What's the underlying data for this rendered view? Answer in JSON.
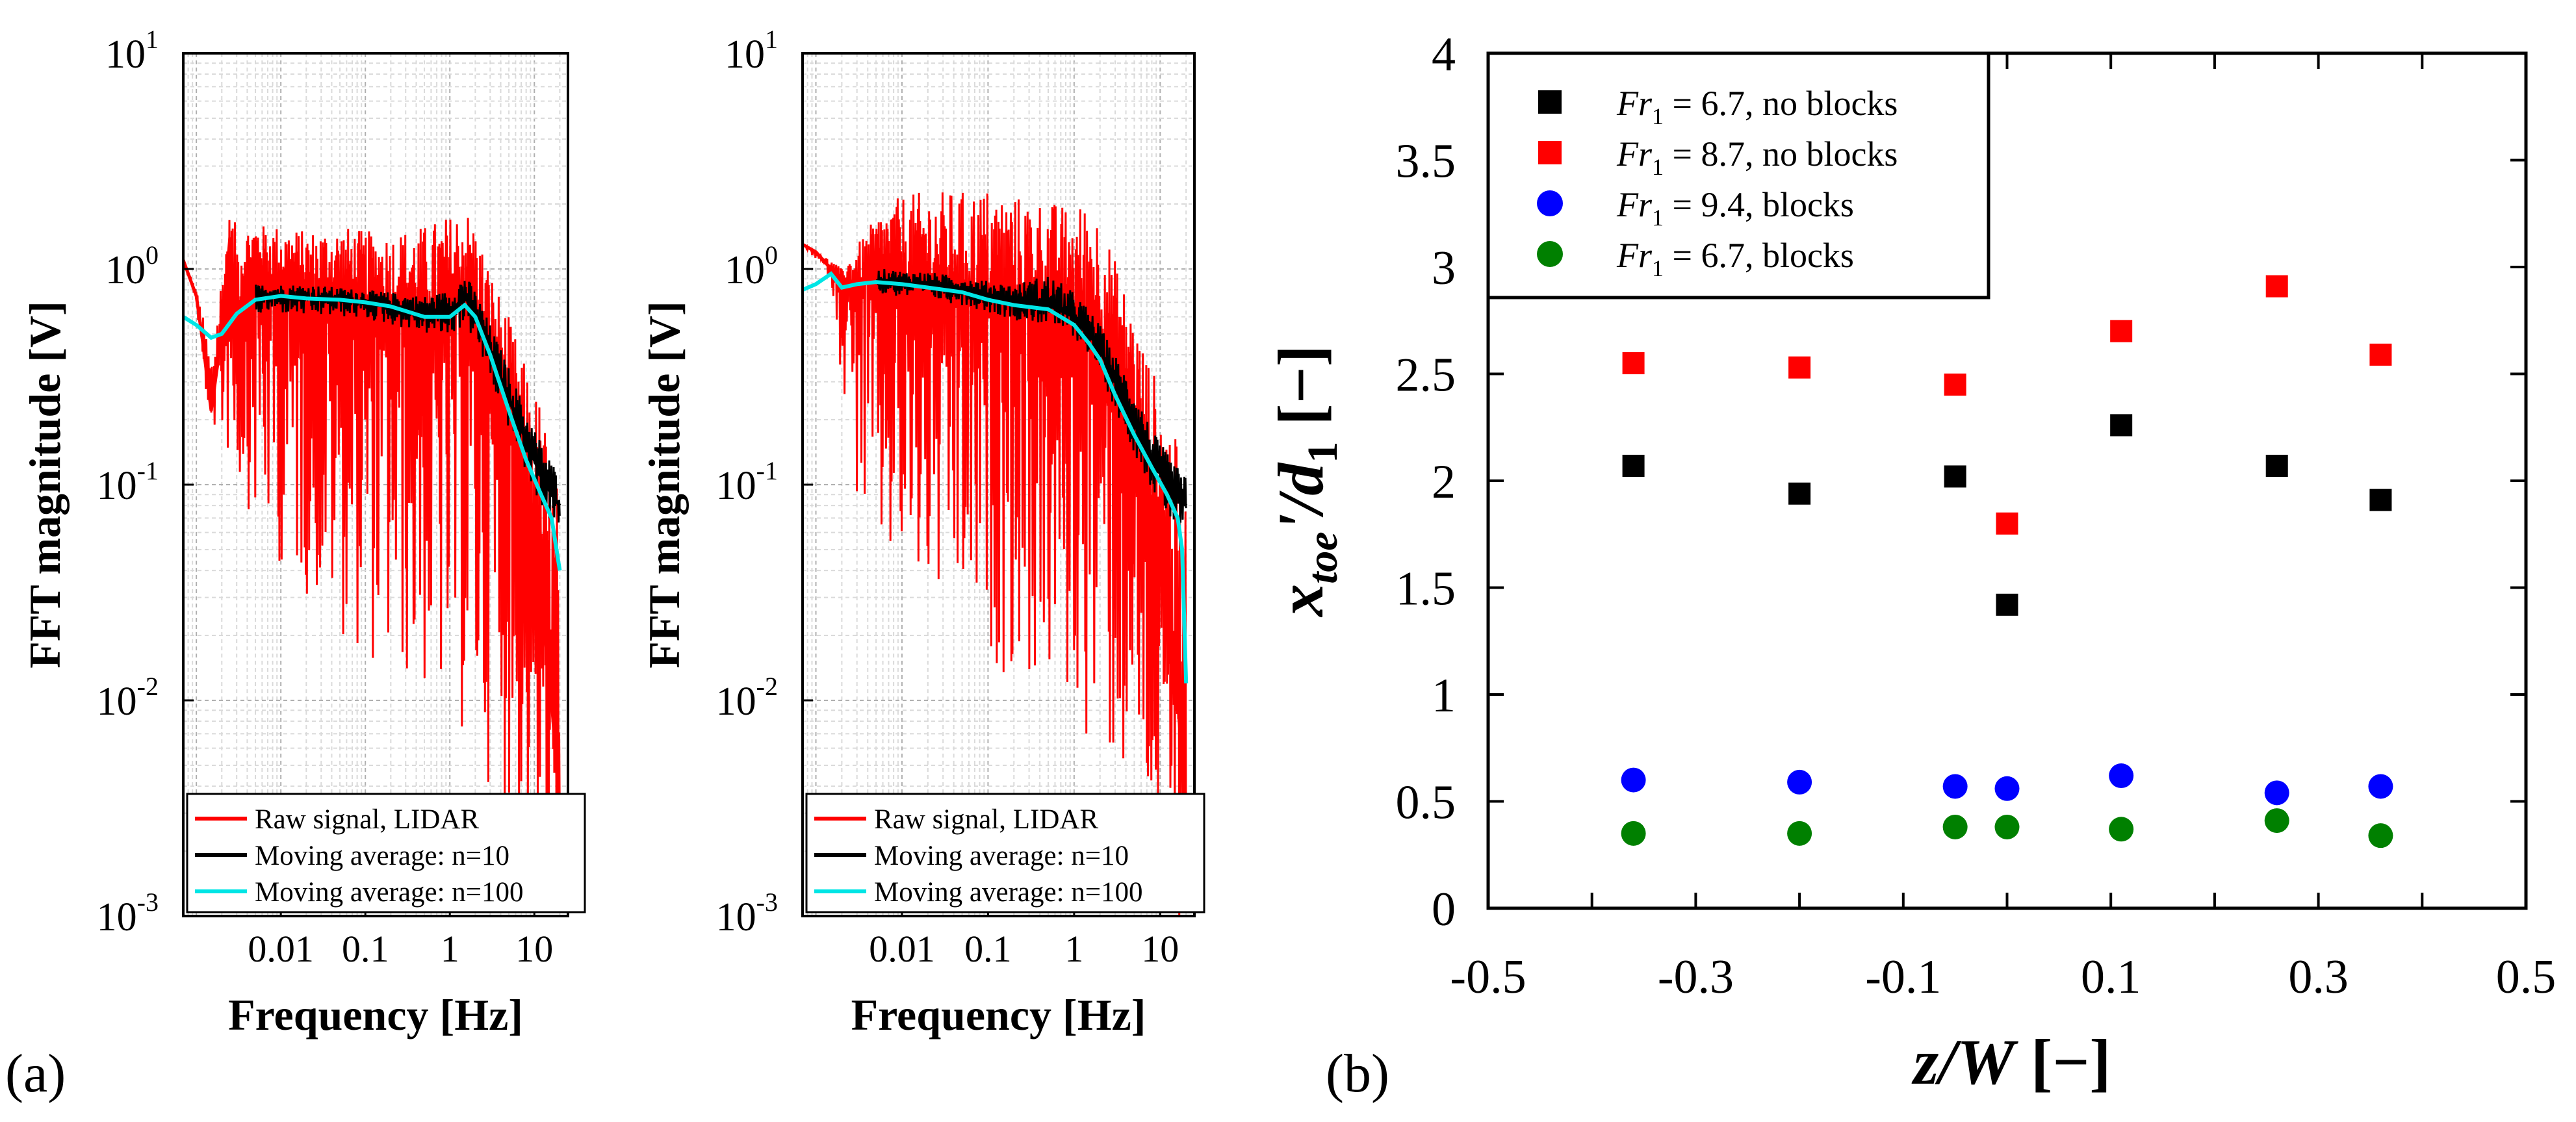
{
  "panel_labels": {
    "a": "(a)",
    "b": "(b)"
  },
  "chart_data": [
    {
      "type": "line",
      "scale": "loglog",
      "xlabel": "Frequency [Hz]",
      "ylabel": "FFT magnitude [V]",
      "xlim": [
        0.0007,
        25
      ],
      "ylim": [
        0.001,
        10
      ],
      "xticks": [
        0.01,
        0.1,
        1,
        10
      ],
      "xtick_labels": [
        "0.01",
        "0.1",
        "1",
        "10"
      ],
      "yticks": [
        0.001,
        0.01,
        0.1,
        1,
        10
      ],
      "ytick_labels": [
        {
          "b": "10",
          "e": "-3"
        },
        {
          "b": "10",
          "e": "-2"
        },
        {
          "b": "10",
          "e": "-1"
        },
        {
          "b": "10",
          "e": "0"
        },
        {
          "b": "10",
          "e": "1"
        }
      ],
      "grid": true,
      "legend_position": "bottom",
      "series": [
        {
          "name": "Raw signal, LIDAR",
          "color": "#ff0000",
          "x": [
            0.0007,
            0.001,
            0.0012,
            0.0015,
            0.002,
            0.0025,
            0.003,
            0.004,
            0.005,
            0.007,
            0.01,
            0.02,
            0.05,
            0.1,
            0.2,
            0.5,
            1,
            1.5,
            2,
            3,
            5,
            8,
            12,
            16,
            20
          ],
          "y": [
            1.1,
            0.75,
            0.45,
            0.22,
            0.5,
            1.4,
            0.6,
            0.9,
            1.1,
            0.9,
            0.85,
            0.8,
            0.75,
            0.7,
            0.65,
            0.6,
            0.6,
            0.8,
            0.7,
            0.4,
            0.2,
            0.08,
            0.03,
            0.01,
            0.003
          ],
          "envelope_upper": [
            1.1,
            0.8,
            0.6,
            0.4,
            1.0,
            1.8,
            1.6,
            1.6,
            1.6,
            1.6,
            1.6,
            1.5,
            1.6,
            1.5,
            1.5,
            1.6,
            1.8,
            2.0,
            1.6,
            1.0,
            0.6,
            0.35,
            0.25,
            0.15,
            0.1
          ],
          "envelope_lower": [
            1.1,
            0.7,
            0.3,
            0.2,
            0.15,
            0.12,
            0.1,
            0.08,
            0.06,
            0.05,
            0.04,
            0.03,
            0.02,
            0.015,
            0.012,
            0.01,
            0.008,
            0.006,
            0.005,
            0.004,
            0.003,
            0.002,
            0.0015,
            0.001,
            0.001
          ]
        },
        {
          "name": "Moving average: n=10",
          "color": "#000000",
          "x": [
            0.005,
            0.007,
            0.01,
            0.02,
            0.05,
            0.1,
            0.2,
            0.5,
            1,
            1.5,
            2,
            3,
            5,
            8,
            12,
            16,
            20
          ],
          "y": [
            0.72,
            0.75,
            0.74,
            0.73,
            0.72,
            0.7,
            0.67,
            0.62,
            0.62,
            0.75,
            0.62,
            0.42,
            0.25,
            0.16,
            0.11,
            0.09,
            0.08
          ],
          "envelope_upper": [
            0.85,
            0.85,
            0.85,
            0.85,
            0.82,
            0.8,
            0.78,
            0.75,
            0.8,
            0.95,
            0.8,
            0.55,
            0.35,
            0.22,
            0.16,
            0.13,
            0.11
          ],
          "envelope_lower": [
            0.6,
            0.62,
            0.62,
            0.6,
            0.6,
            0.58,
            0.55,
            0.5,
            0.48,
            0.55,
            0.45,
            0.3,
            0.18,
            0.11,
            0.08,
            0.065,
            0.06
          ]
        },
        {
          "name": "Moving average: n=100",
          "color": "#00e5e5",
          "x": [
            0.0007,
            0.001,
            0.0015,
            0.002,
            0.003,
            0.005,
            0.01,
            0.02,
            0.05,
            0.1,
            0.2,
            0.5,
            1,
            1.5,
            2,
            3,
            5,
            8,
            12,
            16,
            20
          ],
          "y": [
            0.6,
            0.55,
            0.48,
            0.5,
            0.62,
            0.72,
            0.75,
            0.73,
            0.72,
            0.7,
            0.67,
            0.6,
            0.6,
            0.68,
            0.6,
            0.4,
            0.22,
            0.13,
            0.09,
            0.07,
            0.04
          ]
        }
      ]
    },
    {
      "type": "line",
      "scale": "loglog",
      "xlabel": "Frequency [Hz]",
      "ylabel": "FFT magnitude [V]",
      "xlim": [
        0.0007,
        25
      ],
      "ylim": [
        0.001,
        10
      ],
      "xticks": [
        0.01,
        0.1,
        1,
        10
      ],
      "xtick_labels": [
        "0.01",
        "0.1",
        "1",
        "10"
      ],
      "yticks": [
        0.001,
        0.01,
        0.1,
        1,
        10
      ],
      "ytick_labels": [
        {
          "b": "10",
          "e": "-3"
        },
        {
          "b": "10",
          "e": "-2"
        },
        {
          "b": "10",
          "e": "-1"
        },
        {
          "b": "10",
          "e": "0"
        },
        {
          "b": "10",
          "e": "1"
        }
      ],
      "grid": true,
      "legend_position": "bottom",
      "series": [
        {
          "name": "Raw signal, LIDAR",
          "color": "#ff0000",
          "x": [
            0.0007,
            0.001,
            0.0015,
            0.002,
            0.003,
            0.004,
            0.005,
            0.007,
            0.01,
            0.02,
            0.05,
            0.1,
            0.2,
            0.5,
            1,
            1.5,
            2,
            3,
            5,
            8,
            12,
            16,
            20
          ],
          "y": [
            1.3,
            1.2,
            1.0,
            0.9,
            0.85,
            0.9,
            0.85,
            0.9,
            0.85,
            0.8,
            0.75,
            0.7,
            0.7,
            0.65,
            0.6,
            0.55,
            0.5,
            0.4,
            0.2,
            0.08,
            0.03,
            0.01,
            0.003
          ],
          "envelope_upper": [
            1.3,
            1.2,
            1.1,
            1.0,
            1.3,
            1.5,
            1.8,
            2.0,
            2.2,
            2.3,
            2.3,
            2.4,
            2.2,
            2.1,
            1.9,
            2.2,
            1.8,
            1.1,
            0.6,
            0.35,
            0.25,
            0.15,
            0.1
          ],
          "envelope_lower": [
            1.3,
            1.1,
            0.9,
            0.3,
            0.08,
            0.05,
            0.04,
            0.035,
            0.03,
            0.025,
            0.02,
            0.015,
            0.012,
            0.01,
            0.008,
            0.006,
            0.005,
            0.004,
            0.003,
            0.002,
            0.0015,
            0.001,
            0.001
          ]
        },
        {
          "name": "Moving average: n=10",
          "color": "#000000",
          "x": [
            0.005,
            0.007,
            0.01,
            0.02,
            0.05,
            0.1,
            0.2,
            0.5,
            1,
            1.5,
            2,
            3,
            5,
            8,
            12,
            16,
            20
          ],
          "y": [
            0.88,
            0.88,
            0.86,
            0.85,
            0.8,
            0.75,
            0.7,
            0.68,
            0.6,
            0.5,
            0.42,
            0.3,
            0.2,
            0.13,
            0.1,
            0.09,
            0.08
          ],
          "envelope_upper": [
            1.0,
            1.0,
            0.98,
            0.97,
            0.92,
            0.88,
            0.85,
            0.95,
            0.78,
            0.65,
            0.55,
            0.4,
            0.28,
            0.18,
            0.14,
            0.12,
            0.11
          ],
          "envelope_lower": [
            0.75,
            0.75,
            0.74,
            0.72,
            0.68,
            0.63,
            0.58,
            0.55,
            0.48,
            0.4,
            0.33,
            0.22,
            0.14,
            0.095,
            0.07,
            0.06,
            0.05
          ]
        },
        {
          "name": "Moving average: n=100",
          "color": "#00e5e5",
          "x": [
            0.0007,
            0.001,
            0.0015,
            0.002,
            0.003,
            0.005,
            0.01,
            0.02,
            0.05,
            0.1,
            0.2,
            0.5,
            1,
            1.5,
            2,
            3,
            5,
            8,
            12,
            16,
            18,
            20
          ],
          "y": [
            0.8,
            0.85,
            0.95,
            0.82,
            0.85,
            0.87,
            0.85,
            0.82,
            0.78,
            0.72,
            0.68,
            0.65,
            0.55,
            0.45,
            0.38,
            0.26,
            0.17,
            0.12,
            0.09,
            0.07,
            0.05,
            0.012
          ]
        }
      ]
    },
    {
      "type": "scatter",
      "xlabel": {
        "base": "z",
        "sep": "/",
        "sym": "W",
        "unit": " [−]"
      },
      "ylabel": {
        "base": "x",
        "sub": "toe",
        "mid": "'/",
        "sym": "d",
        "sub2": "1",
        "unit": " [−]"
      },
      "xlim": [
        -0.5,
        0.5
      ],
      "ylim": [
        0,
        4
      ],
      "xticks": [
        -0.5,
        -0.3,
        -0.1,
        0.1,
        0.3,
        0.5
      ],
      "xtick_labels": [
        "-0.5",
        "-0.3",
        "-0.1",
        "0.1",
        "0.3",
        "0.5"
      ],
      "yticks": [
        0,
        0.5,
        1,
        1.5,
        2,
        2.5,
        3,
        3.5,
        4
      ],
      "ytick_labels": [
        "0",
        "0.5",
        "1",
        "1.5",
        "2",
        "2.5",
        "3",
        "3.5",
        "4"
      ],
      "grid": false,
      "legend_position": "top-left",
      "series": [
        {
          "name": "Fr1 = 6.7, no blocks",
          "legend": {
            "sym": "Fr",
            "sub": "1",
            "rest": " = 6.7, no blocks"
          },
          "marker": "square",
          "color": "#000000",
          "x": [
            -0.36,
            -0.2,
            -0.05,
            0.0,
            0.11,
            0.26,
            0.36
          ],
          "y": [
            2.07,
            1.94,
            2.02,
            1.42,
            2.26,
            2.07,
            1.91
          ]
        },
        {
          "name": "Fr1 = 8.7, no blocks",
          "legend": {
            "sym": "Fr",
            "sub": "1",
            "rest": " = 8.7, no blocks"
          },
          "marker": "square",
          "color": "#ff0000",
          "x": [
            -0.36,
            -0.2,
            -0.05,
            0.0,
            0.11,
            0.26,
            0.36
          ],
          "y": [
            2.55,
            2.53,
            2.45,
            1.8,
            2.7,
            2.91,
            2.59
          ]
        },
        {
          "name": "Fr1 = 9.4, blocks",
          "legend": {
            "sym": "Fr",
            "sub": "1",
            "rest": " = 9.4, blocks"
          },
          "marker": "circle",
          "color": "#0000ff",
          "x": [
            -0.36,
            -0.2,
            -0.05,
            0.0,
            0.11,
            0.26,
            0.36
          ],
          "y": [
            0.6,
            0.59,
            0.57,
            0.56,
            0.62,
            0.54,
            0.57
          ]
        },
        {
          "name": "Fr1 = 6.7, blocks",
          "legend": {
            "sym": "Fr",
            "sub": "1",
            "rest": " = 6.7, blocks"
          },
          "marker": "circle",
          "color": "#008000",
          "x": [
            -0.36,
            -0.2,
            -0.05,
            0.0,
            0.11,
            0.26,
            0.36
          ],
          "y": [
            0.35,
            0.35,
            0.38,
            0.38,
            0.37,
            0.41,
            0.34
          ]
        }
      ]
    }
  ]
}
